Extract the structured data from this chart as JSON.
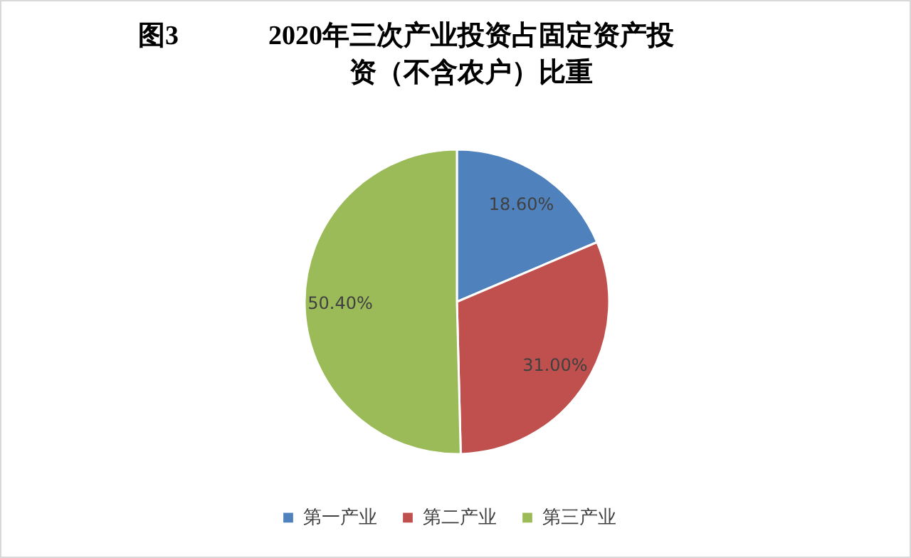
{
  "chart_data": {
    "type": "pie",
    "title": "2020年三次产业投资占固定资产投资（不含农户）比重",
    "annotations": [
      "图3"
    ],
    "categories": [
      "第一产业",
      "第二产业",
      "第三产业"
    ],
    "values": [
      18.6,
      31.0,
      50.4
    ],
    "value_labels": [
      "18.60%",
      "31.00%",
      "50.40%"
    ],
    "colors": [
      "#4f81bd",
      "#c0504d",
      "#9bbb59"
    ],
    "legend": "bottom"
  }
}
